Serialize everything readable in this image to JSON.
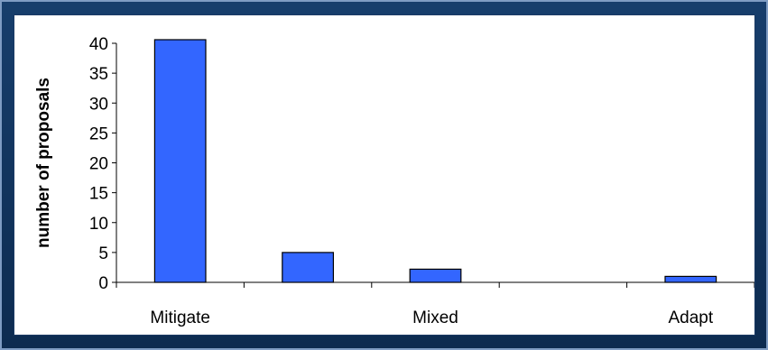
{
  "chart_data": {
    "type": "bar",
    "categories": [
      "Mitigate",
      "",
      "Mixed",
      "",
      "Adapt"
    ],
    "values": [
      41,
      5,
      2.2,
      0,
      1
    ],
    "ylabel": "number of proposals",
    "xlabel": "",
    "ylim": [
      0,
      40
    ],
    "yticks": [
      "0",
      "5",
      "10",
      "15",
      "20",
      "25",
      "30",
      "35",
      "40"
    ],
    "grid": false,
    "bar_color": "#3366ff",
    "bar_edge_color": "#000000"
  },
  "colors": {
    "outer_background": "#0e2f55",
    "panel_background": "#ffffff"
  }
}
